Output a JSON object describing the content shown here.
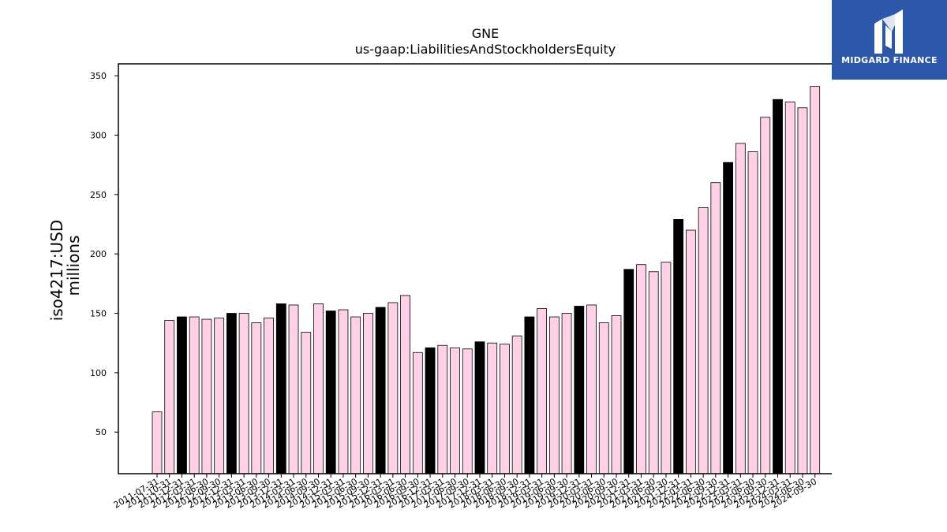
{
  "chart_data": {
    "type": "bar",
    "title": "GNE",
    "subtitle": "us-gaap:LiabilitiesAndStockholdersEquity",
    "ylabel": "iso4217:USD",
    "ylabel2": "millions",
    "xlabel": "",
    "ylim": [
      15,
      360
    ],
    "yticks": [
      50,
      100,
      150,
      200,
      250,
      300,
      350
    ],
    "grid": false,
    "colors": {
      "regular": "#ffd0e6",
      "fiscal_year_end": "#000000",
      "edge": "#000000"
    },
    "categories": [
      "2011-07-31",
      "2011-10-31",
      "2011-12-31",
      "2012-03-31",
      "2012-06-30",
      "2012-09-30",
      "2012-12-31",
      "2013-03-31",
      "2013-06-30",
      "2013-09-30",
      "2013-12-31",
      "2014-03-31",
      "2014-06-30",
      "2014-09-30",
      "2014-12-31",
      "2015-03-31",
      "2015-06-30",
      "2015-09-30",
      "2015-12-31",
      "2016-03-31",
      "2016-06-30",
      "2016-09-30",
      "2016-12-31",
      "2017-03-31",
      "2017-06-30",
      "2017-09-30",
      "2017-12-31",
      "2018-03-31",
      "2018-06-30",
      "2018-09-30",
      "2018-12-31",
      "2019-03-31",
      "2019-06-30",
      "2019-09-30",
      "2019-12-31",
      "2020-03-31",
      "2020-06-30",
      "2020-09-30",
      "2020-12-31",
      "2021-03-31",
      "2021-06-30",
      "2021-09-30",
      "2021-12-31",
      "2022-03-31",
      "2022-06-30",
      "2022-09-30",
      "2022-12-31",
      "2023-03-31",
      "2023-06-30",
      "2023-09-30",
      "2023-12-31",
      "2024-03-31",
      "2024-06-30",
      "2024-09-30"
    ],
    "values": [
      67,
      144,
      147,
      147,
      145,
      146,
      150,
      150,
      142,
      146,
      158,
      157,
      134,
      158,
      152,
      153,
      147,
      150,
      155,
      159,
      165,
      117,
      121,
      123,
      121,
      120,
      126,
      125,
      124,
      131,
      147,
      154,
      147,
      150,
      156,
      157,
      142,
      148,
      187,
      191,
      185,
      193,
      229,
      220,
      239,
      260,
      277,
      293,
      286,
      315,
      330,
      328,
      323,
      341
    ],
    "highlight": [
      false,
      false,
      true,
      false,
      false,
      false,
      true,
      false,
      false,
      false,
      true,
      false,
      false,
      false,
      true,
      false,
      false,
      false,
      true,
      false,
      false,
      false,
      true,
      false,
      false,
      false,
      true,
      false,
      false,
      false,
      true,
      false,
      false,
      false,
      true,
      false,
      false,
      false,
      true,
      false,
      false,
      false,
      true,
      false,
      false,
      false,
      true,
      false,
      false,
      false,
      true,
      false,
      false,
      false
    ]
  },
  "logo": {
    "text": "MIDGARD FINANCE",
    "icon": "midgard-logo-icon",
    "background": "#2d57a8"
  }
}
